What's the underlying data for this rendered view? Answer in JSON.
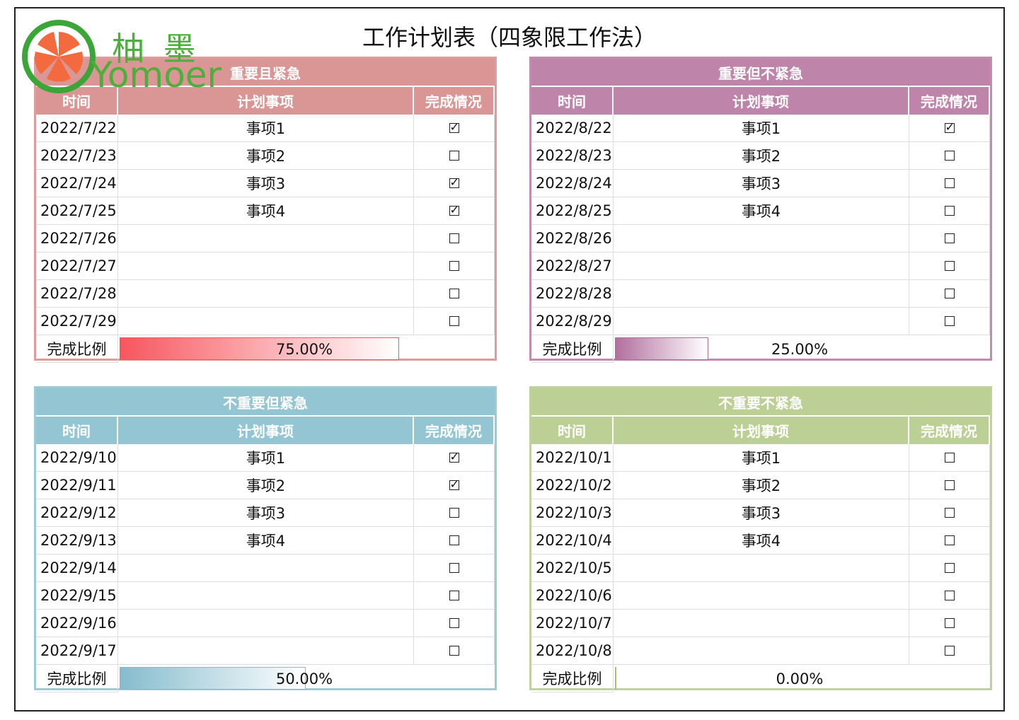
{
  "header": {
    "title": "工作计划表（四象限工作法）",
    "logo_cn": "柚 墨",
    "logo_en": "Yomoer"
  },
  "quadrants": [
    {
      "title": "重要且紧急",
      "headers": [
        "时间",
        "计划事项",
        "完成情况"
      ],
      "rows": [
        {
          "date": "2022/7/22",
          "item": "事项1",
          "done": true
        },
        {
          "date": "2022/7/23",
          "item": "事项2",
          "done": false
        },
        {
          "date": "2022/7/24",
          "item": "事项3",
          "done": true
        },
        {
          "date": "2022/7/25",
          "item": "事项4",
          "done": true
        },
        {
          "date": "2022/7/26",
          "done": false
        },
        {
          "date": "2022/7/27",
          "done": false
        },
        {
          "date": "2022/7/28",
          "done": false
        },
        {
          "date": "2022/7/29",
          "done": false
        }
      ],
      "completion": {
        "label": "完成比例",
        "value": 75,
        "value_label": "75.00%"
      }
    },
    {
      "title": "重要但不紧急",
      "headers": [
        "时间",
        "计划事项",
        "完成情况"
      ],
      "rows": [
        {
          "date": "2022/8/22",
          "item": "事项1",
          "done": true
        },
        {
          "date": "2022/8/23",
          "item": "事项2",
          "done": false
        },
        {
          "date": "2022/8/24",
          "item": "事项3",
          "done": false
        },
        {
          "date": "2022/8/25",
          "item": "事项4",
          "done": false
        },
        {
          "date": "2022/8/26",
          "done": false
        },
        {
          "date": "2022/8/27",
          "done": false
        },
        {
          "date": "2022/8/28",
          "done": false
        },
        {
          "date": "2022/8/29",
          "done": false
        }
      ],
      "completion": {
        "label": "完成比例",
        "value": 25,
        "value_label": "25.00%"
      }
    },
    {
      "title": "不重要但紧急",
      "headers": [
        "时间",
        "计划事项",
        "完成情况"
      ],
      "rows": [
        {
          "date": "2022/9/10",
          "item": "事项1",
          "done": true
        },
        {
          "date": "2022/9/11",
          "item": "事项2",
          "done": true
        },
        {
          "date": "2022/9/12",
          "item": "事项3",
          "done": false
        },
        {
          "date": "2022/9/13",
          "item": "事项4",
          "done": false
        },
        {
          "date": "2022/9/14",
          "done": false
        },
        {
          "date": "2022/9/15",
          "done": false
        },
        {
          "date": "2022/9/16",
          "done": false
        },
        {
          "date": "2022/9/17",
          "done": false
        }
      ],
      "completion": {
        "label": "完成比例",
        "value": 50,
        "value_label": "50.00%"
      }
    },
    {
      "title": "不重要不紧急",
      "headers": [
        "时间",
        "计划事项",
        "完成情况"
      ],
      "rows": [
        {
          "date": "2022/10/1",
          "item": "事项1",
          "done": false
        },
        {
          "date": "2022/10/2",
          "item": "事项2",
          "done": false
        },
        {
          "date": "2022/10/3",
          "item": "事项3",
          "done": false
        },
        {
          "date": "2022/10/4",
          "item": "事项4",
          "done": false
        },
        {
          "date": "2022/10/5",
          "done": false
        },
        {
          "date": "2022/10/6",
          "done": false
        },
        {
          "date": "2022/10/7",
          "done": false
        },
        {
          "date": "2022/10/8",
          "done": false
        }
      ],
      "completion": {
        "label": "完成比例",
        "value": 0,
        "value_label": "0.00%"
      }
    }
  ]
}
